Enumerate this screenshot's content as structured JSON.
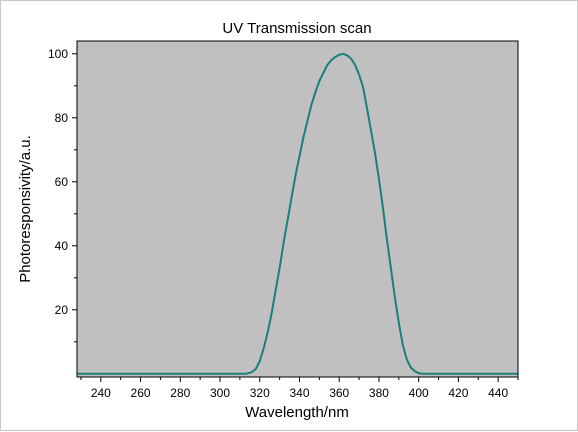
{
  "chart_data": {
    "type": "line",
    "title": "UV Transmission scan",
    "xlabel": "Wavelength/nm",
    "ylabel": "Photoresponsivity/a.u.",
    "xlim": [
      228,
      450
    ],
    "ylim": [
      -1,
      104
    ],
    "xticks": [
      240,
      260,
      280,
      300,
      320,
      340,
      360,
      380,
      400,
      420,
      440
    ],
    "yticks": [
      20,
      40,
      60,
      80,
      100
    ],
    "grid": false,
    "plot_background": "#c0c0c0",
    "line_color": "#1a7f7a",
    "series": [
      {
        "x": [
          228,
          240,
          260,
          280,
          300,
          310,
          313,
          316,
          318,
          320,
          322,
          324,
          326,
          328,
          330,
          332,
          334,
          336,
          338,
          340,
          342,
          344,
          346,
          348,
          350,
          352,
          354,
          356,
          358,
          360,
          362,
          364,
          366,
          368,
          370,
          372,
          374,
          376,
          378,
          380,
          382,
          384,
          386,
          388,
          390,
          392,
          394,
          396,
          398,
          400,
          402,
          404,
          406,
          410,
          420,
          430,
          440,
          450
        ],
        "y": [
          0,
          0,
          0,
          0,
          0,
          0,
          0,
          0.5,
          1.5,
          4,
          8,
          13,
          19,
          26,
          33,
          41,
          48,
          55,
          62,
          68,
          74,
          79,
          84,
          88,
          91.5,
          94,
          96.5,
          98,
          99,
          99.7,
          100,
          99.5,
          98.5,
          96.5,
          93.5,
          89.5,
          83,
          76,
          69,
          61,
          52,
          42,
          33,
          24,
          16,
          9,
          4.5,
          2,
          0.8,
          0.2,
          0,
          0,
          0,
          0,
          0,
          0,
          0,
          0
        ]
      }
    ]
  }
}
